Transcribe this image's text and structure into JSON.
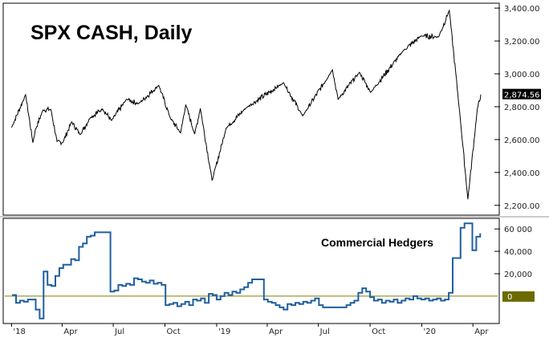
{
  "chart_data": [
    {
      "type": "line",
      "title": "SPX CASH, Daily",
      "y_tick_labels": [
        "3,400.00",
        "3,200.00",
        "3,000.00",
        "2,800.00",
        "2,600.00",
        "2,400.00",
        "2,200.00"
      ],
      "last_value_label": "2,874.56",
      "ylim": [
        2150,
        3420
      ],
      "colors": {
        "line": "#000000",
        "last_label_bg": "#000000"
      },
      "series": [
        {
          "points": [
            [
              "2018-01-01",
              2673
            ],
            [
              "2018-01-26",
              2873
            ],
            [
              "2018-02-08",
              2581
            ],
            [
              "2018-02-12",
              2656
            ],
            [
              "2018-02-26",
              2780
            ],
            [
              "2018-03-12",
              2783
            ],
            [
              "2018-03-23",
              2588
            ],
            [
              "2018-04-02",
              2581
            ],
            [
              "2018-04-18",
              2708
            ],
            [
              "2018-05-03",
              2630
            ],
            [
              "2018-05-21",
              2733
            ],
            [
              "2018-06-12",
              2786
            ],
            [
              "2018-06-28",
              2716
            ],
            [
              "2018-07-25",
              2846
            ],
            [
              "2018-08-15",
              2818
            ],
            [
              "2018-09-20",
              2930
            ],
            [
              "2018-10-11",
              2728
            ],
            [
              "2018-10-29",
              2641
            ],
            [
              "2018-11-07",
              2813
            ],
            [
              "2018-11-23",
              2633
            ],
            [
              "2018-12-03",
              2790
            ],
            [
              "2018-12-24",
              2351
            ],
            [
              "2019-01-18",
              2670
            ],
            [
              "2019-02-22",
              2792
            ],
            [
              "2019-04-30",
              2946
            ],
            [
              "2019-06-03",
              2744
            ],
            [
              "2019-07-26",
              3025
            ],
            [
              "2019-08-05",
              2845
            ],
            [
              "2019-09-12",
              3009
            ],
            [
              "2019-10-02",
              2887
            ],
            [
              "2019-11-29",
              3141
            ],
            [
              "2019-12-31",
              3231
            ],
            [
              "2020-01-31",
              3225
            ],
            [
              "2020-02-19",
              3386
            ],
            [
              "2020-03-09",
              2747
            ],
            [
              "2020-03-23",
              2237
            ],
            [
              "2020-04-09",
              2790
            ],
            [
              "2020-04-14",
              2846
            ],
            [
              "2020-04-15",
              2874.56
            ]
          ]
        }
      ]
    },
    {
      "type": "line",
      "annotation": "Commercial Hedgers",
      "y_tick_labels": [
        "60 000",
        "40,000",
        "20,000"
      ],
      "zero_label": "0",
      "ylim": [
        -23000,
        68000
      ],
      "x_tick_labels": [
        "'18",
        "Apr",
        "Jul",
        "Oct",
        "'19",
        "Apr",
        "Jul",
        "Oct",
        "'20",
        "Apr"
      ],
      "colors": {
        "line": "#1f5fa0",
        "zero_line": "#808000",
        "zero_label_bg": "#6b6b00"
      },
      "series": [
        {
          "points": [
            [
              "2018-01-02",
              1000
            ],
            [
              "2018-01-09",
              -6000
            ],
            [
              "2018-01-16",
              -4000
            ],
            [
              "2018-01-23",
              -5000
            ],
            [
              "2018-01-30",
              -3000
            ],
            [
              "2018-02-06",
              -3000
            ],
            [
              "2018-02-13",
              -12000
            ],
            [
              "2018-02-20",
              -20000
            ],
            [
              "2018-02-27",
              22000
            ],
            [
              "2018-03-06",
              10000
            ],
            [
              "2018-03-13",
              9000
            ],
            [
              "2018-03-20",
              18000
            ],
            [
              "2018-03-27",
              25000
            ],
            [
              "2018-04-03",
              28000
            ],
            [
              "2018-04-10",
              28000
            ],
            [
              "2018-04-17",
              33000
            ],
            [
              "2018-04-24",
              32000
            ],
            [
              "2018-05-01",
              44000
            ],
            [
              "2018-05-08",
              47000
            ],
            [
              "2018-05-15",
              53000
            ],
            [
              "2018-05-22",
              54000
            ],
            [
              "2018-05-29",
              57000
            ],
            [
              "2018-06-05",
              57000
            ],
            [
              "2018-06-12",
              57000
            ],
            [
              "2018-06-19",
              57000
            ],
            [
              "2018-06-26",
              4000
            ],
            [
              "2018-07-03",
              5000
            ],
            [
              "2018-07-10",
              10000
            ],
            [
              "2018-07-17",
              9000
            ],
            [
              "2018-07-24",
              11000
            ],
            [
              "2018-07-31",
              10000
            ],
            [
              "2018-08-07",
              16000
            ],
            [
              "2018-08-14",
              15000
            ],
            [
              "2018-08-21",
              13000
            ],
            [
              "2018-08-28",
              12000
            ],
            [
              "2018-09-04",
              14000
            ],
            [
              "2018-09-11",
              11000
            ],
            [
              "2018-09-18",
              12000
            ],
            [
              "2018-09-25",
              10000
            ],
            [
              "2018-10-02",
              -8000
            ],
            [
              "2018-10-09",
              -7000
            ],
            [
              "2018-10-16",
              -6000
            ],
            [
              "2018-10-23",
              -9000
            ],
            [
              "2018-10-30",
              -7000
            ],
            [
              "2018-11-06",
              -5000
            ],
            [
              "2018-11-13",
              -8000
            ],
            [
              "2018-11-20",
              -3000
            ],
            [
              "2018-11-27",
              -4000
            ],
            [
              "2018-12-04",
              -2000
            ],
            [
              "2018-12-11",
              -6000
            ],
            [
              "2018-12-18",
              2000
            ],
            [
              "2018-12-25",
              1000
            ],
            [
              "2019-01-01",
              -3000
            ],
            [
              "2019-01-08",
              0
            ],
            [
              "2019-01-15",
              3000
            ],
            [
              "2019-01-22",
              1000
            ],
            [
              "2019-01-29",
              4000
            ],
            [
              "2019-02-05",
              3000
            ],
            [
              "2019-02-12",
              6000
            ],
            [
              "2019-02-19",
              8000
            ],
            [
              "2019-02-26",
              12000
            ],
            [
              "2019-03-05",
              15000
            ],
            [
              "2019-03-12",
              15000
            ],
            [
              "2019-03-19",
              15000
            ],
            [
              "2019-03-26",
              -3000
            ],
            [
              "2019-04-02",
              -5000
            ],
            [
              "2019-04-09",
              -6000
            ],
            [
              "2019-04-16",
              -8000
            ],
            [
              "2019-04-23",
              -10000
            ],
            [
              "2019-04-30",
              -12000
            ],
            [
              "2019-05-07",
              -7000
            ],
            [
              "2019-05-14",
              -8000
            ],
            [
              "2019-05-21",
              -6000
            ],
            [
              "2019-05-28",
              -7000
            ],
            [
              "2019-06-04",
              -5000
            ],
            [
              "2019-06-11",
              -6000
            ],
            [
              "2019-06-18",
              -4000
            ],
            [
              "2019-06-25",
              -2000
            ],
            [
              "2019-07-02",
              -8000
            ],
            [
              "2019-07-09",
              -10000
            ],
            [
              "2019-07-16",
              -10000
            ],
            [
              "2019-07-23",
              -10000
            ],
            [
              "2019-07-30",
              -10000
            ],
            [
              "2019-08-06",
              -10000
            ],
            [
              "2019-08-13",
              -10000
            ],
            [
              "2019-08-20",
              -8000
            ],
            [
              "2019-08-27",
              -6000
            ],
            [
              "2019-09-03",
              -4000
            ],
            [
              "2019-09-10",
              3000
            ],
            [
              "2019-09-17",
              7000
            ],
            [
              "2019-09-24",
              4000
            ],
            [
              "2019-10-01",
              -1000
            ],
            [
              "2019-10-08",
              -4000
            ],
            [
              "2019-10-15",
              -3000
            ],
            [
              "2019-10-22",
              -6000
            ],
            [
              "2019-10-29",
              -4000
            ],
            [
              "2019-11-05",
              -5000
            ],
            [
              "2019-11-12",
              -3000
            ],
            [
              "2019-11-19",
              -6000
            ],
            [
              "2019-11-26",
              -4000
            ],
            [
              "2019-12-03",
              -2000
            ],
            [
              "2019-12-10",
              -3000
            ],
            [
              "2019-12-17",
              0
            ],
            [
              "2019-12-24",
              -2000
            ],
            [
              "2019-12-31",
              -3000
            ],
            [
              "2020-01-07",
              -2000
            ],
            [
              "2020-01-14",
              -4000
            ],
            [
              "2020-01-21",
              -3000
            ],
            [
              "2020-01-28",
              -2000
            ],
            [
              "2020-02-04",
              -4000
            ],
            [
              "2020-02-11",
              -3000
            ],
            [
              "2020-02-18",
              3000
            ],
            [
              "2020-02-25",
              34000
            ],
            [
              "2020-03-03",
              34000
            ],
            [
              "2020-03-10",
              61000
            ],
            [
              "2020-03-17",
              65000
            ],
            [
              "2020-03-24",
              65000
            ],
            [
              "2020-03-31",
              41000
            ],
            [
              "2020-04-07",
              53000
            ],
            [
              "2020-04-14",
              56000
            ]
          ]
        }
      ]
    }
  ]
}
